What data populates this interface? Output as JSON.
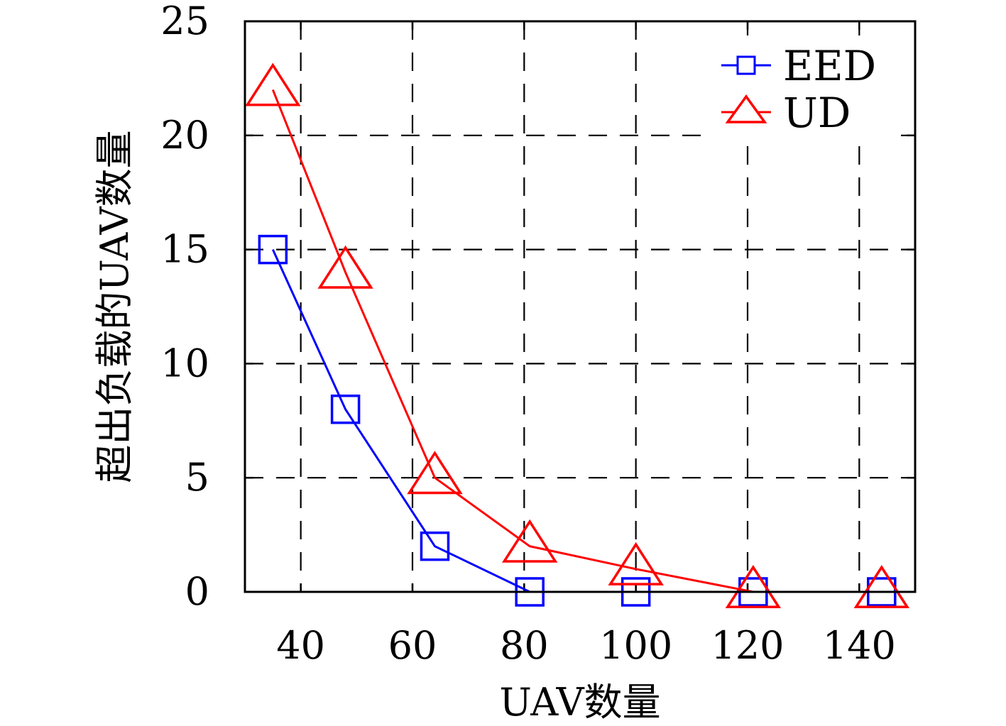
{
  "chart_data": {
    "type": "line",
    "title": "",
    "xlabel": "UAV数量",
    "ylabel": "超出负载的UAV数量",
    "xlim": [
      30,
      150
    ],
    "ylim": [
      0,
      25
    ],
    "xticks": [
      40,
      60,
      80,
      100,
      120,
      140
    ],
    "yticks": [
      0,
      5,
      10,
      15,
      20,
      25
    ],
    "grid": true,
    "legend_position": "top-right",
    "series": [
      {
        "name": "EED",
        "color": "#0000ff",
        "marker": "square",
        "x": [
          35,
          48,
          64,
          81,
          100,
          121,
          144
        ],
        "y": [
          15,
          8,
          2,
          0,
          0,
          0,
          0
        ]
      },
      {
        "name": "UD",
        "color": "#ff0000",
        "marker": "triangle",
        "x": [
          35,
          48,
          64,
          81,
          100,
          121,
          144
        ],
        "y": [
          22,
          14,
          5,
          2,
          1,
          0,
          0
        ]
      }
    ]
  }
}
